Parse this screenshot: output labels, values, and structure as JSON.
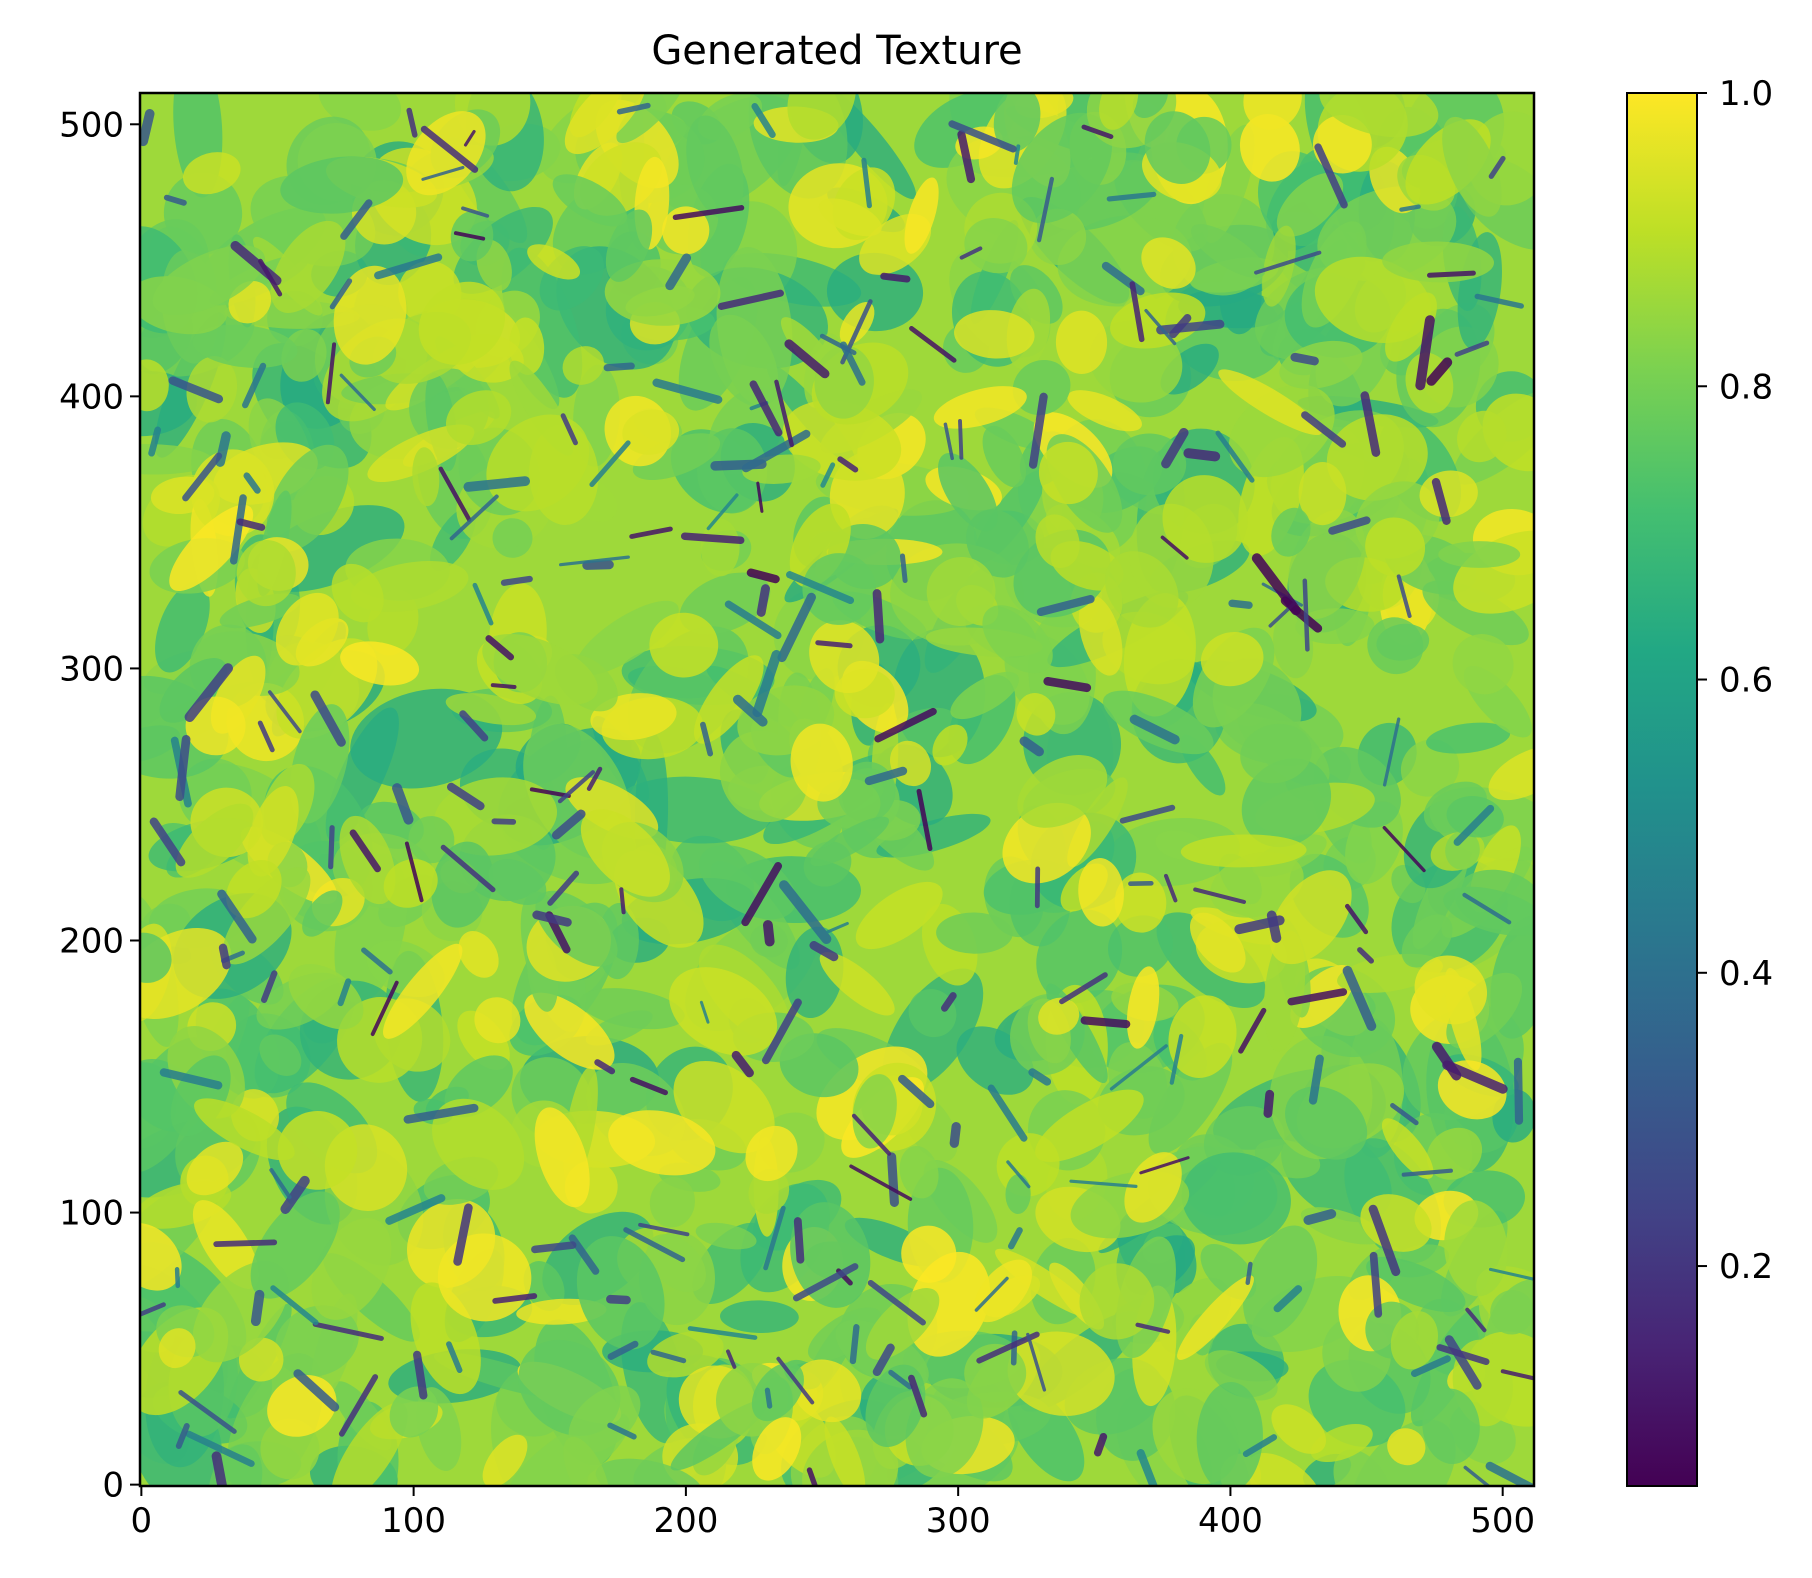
{
  "chart_data": {
    "type": "heatmap",
    "title": "Generated Texture",
    "xlabel": "",
    "ylabel": "",
    "xlim": [
      0,
      511
    ],
    "ylim": [
      0,
      511
    ],
    "x_ticks": [
      0,
      100,
      200,
      300,
      400,
      500
    ],
    "y_ticks": [
      0,
      100,
      200,
      300,
      400,
      500
    ],
    "colormap": "viridis",
    "colorbar": {
      "vmin": 0.05,
      "vmax": 1.0,
      "ticks": [
        0.2,
        0.4,
        0.6,
        0.8,
        1.0
      ],
      "tick_labels": [
        "0.2",
        "0.4",
        "0.6",
        "0.8",
        "1.0"
      ]
    },
    "grid": false,
    "texture_description_values": {
      "dominant_range": [
        0.75,
        1.0
      ],
      "crack_minimum": 0.05
    }
  }
}
